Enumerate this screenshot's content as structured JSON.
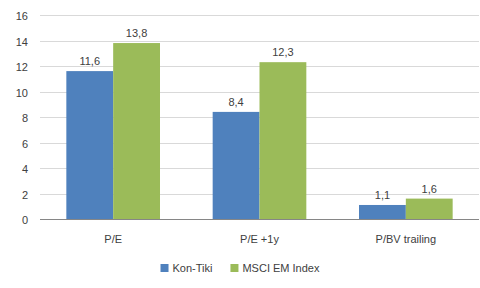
{
  "chart_data": {
    "type": "bar",
    "categories": [
      "P/E",
      "P/E +1y",
      "P/BV trailing"
    ],
    "series": [
      {
        "name": "Kon-Tiki",
        "color": "#4f81bd",
        "values": [
          11.6,
          8.4,
          1.1
        ],
        "value_labels": [
          "11,6",
          "8,4",
          "1,1"
        ]
      },
      {
        "name": "MSCI EM Index",
        "color": "#9bbb59",
        "values": [
          13.8,
          12.3,
          1.6
        ],
        "value_labels": [
          "13,8",
          "12,3",
          "1,6"
        ]
      }
    ],
    "ylim": [
      0,
      16
    ],
    "yticks": [
      0,
      2,
      4,
      6,
      8,
      10,
      12,
      14,
      16
    ],
    "grid": true,
    "legend": "bottom",
    "data_labels": true
  }
}
